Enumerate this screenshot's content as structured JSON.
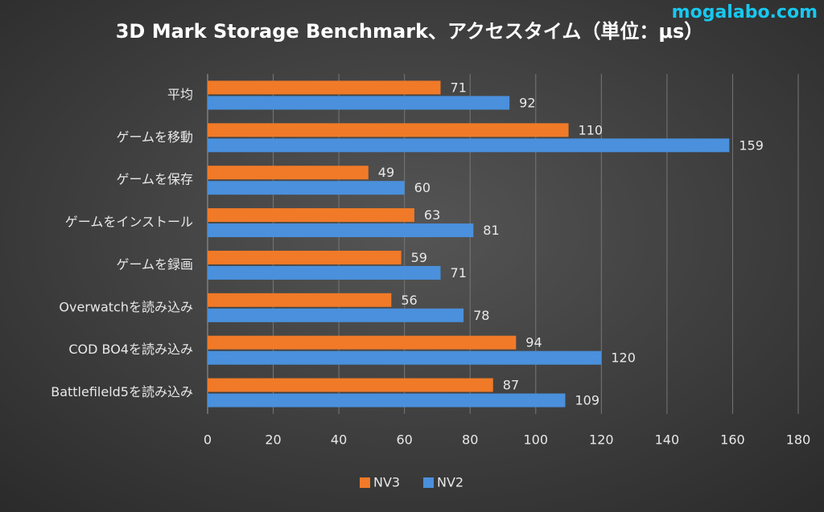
{
  "chart_data": {
    "type": "bar",
    "orientation": "horizontal",
    "title": "3D Mark Storage Benchmark、アクセスタイム（単位：μs）",
    "watermark": "mogalabo.com",
    "categories": [
      "平均",
      "ゲームを移動",
      "ゲームを保存",
      "ゲームをインストール",
      "ゲームを録画",
      "Overwatchを読み込み",
      "COD BO4を読み込み",
      "Battlefileld5を読み込み"
    ],
    "series": [
      {
        "name": "NV3",
        "color": "#f07a28",
        "values": [
          71,
          110,
          49,
          63,
          59,
          56,
          94,
          87
        ]
      },
      {
        "name": "NV2",
        "color": "#4a90dc",
        "values": [
          92,
          159,
          60,
          81,
          71,
          78,
          120,
          109
        ]
      }
    ],
    "xlim": [
      0,
      180
    ],
    "xticks": [
      0,
      20,
      40,
      60,
      80,
      100,
      120,
      140,
      160,
      180
    ],
    "grid": true,
    "legend": "bottom"
  }
}
